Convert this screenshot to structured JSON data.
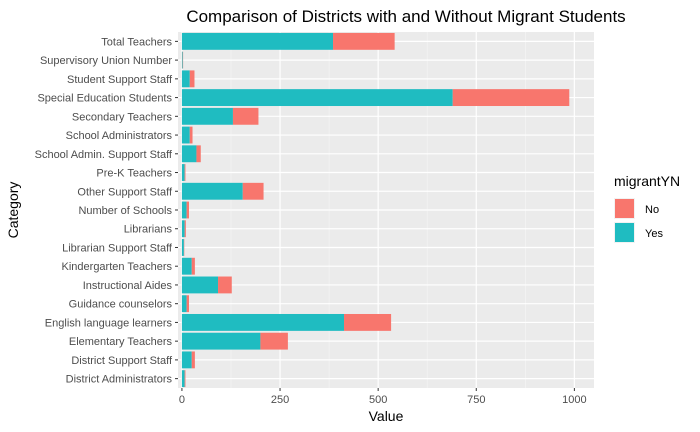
{
  "chart_data": {
    "type": "bar",
    "orientation": "horizontal",
    "stacked": true,
    "title": "Comparison of Districts with and Without Migrant Students",
    "xlabel": "Value",
    "ylabel": "Category",
    "xlim": [
      -10,
      1050
    ],
    "xticks": [
      0,
      250,
      500,
      750,
      1000
    ],
    "xtick_labels": [
      "0",
      "250",
      "500",
      "750",
      "1000"
    ],
    "grid": true,
    "legend_position": "right",
    "legend_title": "migrantYN",
    "categories": [
      "Total Teachers",
      "Supervisory Union Number",
      "Student Support Staff",
      "Special Education Students",
      "Secondary Teachers",
      "School Administrators",
      "School Admin. Support Staff",
      "Pre-K Teachers",
      "Other Support Staff",
      "Number of Schools",
      "Librarians",
      "Librarian Support Staff",
      "Kindergarten Teachers",
      "Instructional Aides",
      "Guidance counselors",
      "English language learners",
      "Elementary Teachers",
      "District Support Staff",
      "District Administrators"
    ],
    "series": [
      {
        "name": "Yes",
        "color": "#1fbcc1",
        "values": [
          385,
          2,
          20,
          690,
          130,
          20,
          37,
          7,
          155,
          12,
          7,
          5,
          25,
          92,
          12,
          413,
          200,
          25,
          7
        ]
      },
      {
        "name": "No",
        "color": "#f8766d",
        "values": [
          157,
          1,
          12,
          297,
          65,
          7,
          11,
          2,
          53,
          6,
          3,
          1,
          8,
          35,
          6,
          120,
          70,
          8,
          2
        ]
      }
    ],
    "legend_order": [
      "No",
      "Yes"
    ],
    "colors": {
      "panel_bg": "#ebebeb",
      "grid_major": "#ffffff",
      "grid_minor": "#f5f5f5"
    }
  }
}
